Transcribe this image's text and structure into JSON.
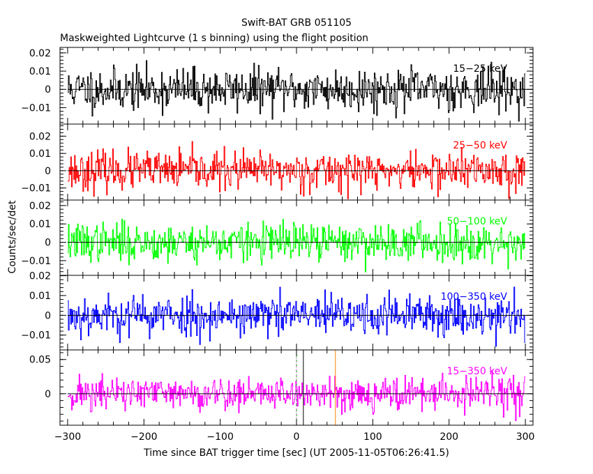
{
  "chart_data": {
    "type": "line",
    "title": "Swift-BAT GRB 051105",
    "subtitle": "Maskweighted Lightcurve (1 s binning) using the flight position",
    "xlabel": "Time since BAT trigger time [sec] (UT 2005-11-05T06:26:41.5)",
    "ylabel": "Counts/sec/det",
    "xlim": [
      -310,
      310
    ],
    "x_ticks": [
      -300,
      -200,
      -100,
      0,
      100,
      200,
      300
    ],
    "x_tick_labels": [
      "−300",
      "−200",
      "−100",
      "0",
      "100",
      "200",
      "300"
    ],
    "x_start": -300,
    "x_end": 300,
    "bin_seconds": 1,
    "markers": [
      {
        "x": 0,
        "color": "#00c000",
        "style": "dashed"
      },
      {
        "x": 0,
        "color": "#ff00ff",
        "style": "dotted"
      },
      {
        "x": 9,
        "color": "#000000",
        "style": "solid"
      },
      {
        "x": 51,
        "color": "#ff8000",
        "style": "solid"
      }
    ],
    "panels": [
      {
        "band": "15-25 keV",
        "label": "15−25 keV",
        "color": "#000000",
        "ylim": [
          -0.019,
          0.023
        ],
        "yticks": [
          -0.01,
          0,
          0.01,
          0.02
        ],
        "ytick_labels": [
          "−0.01",
          "0",
          "0.01",
          "0.02"
        ],
        "noise_sigma": 0.0058,
        "seed": 11
      },
      {
        "band": "25-50 keV",
        "label": "25−50 keV",
        "color": "#ff0000",
        "ylim": [
          -0.017,
          0.027
        ],
        "yticks": [
          -0.01,
          0,
          0.01,
          0.02
        ],
        "ytick_labels": [
          "−0.01",
          "0",
          "0.01",
          "0.02"
        ],
        "noise_sigma": 0.0055,
        "seed": 23
      },
      {
        "band": "50-100 keV",
        "label": "50−100 keV",
        "color": "#00ff00",
        "ylim": [
          -0.018,
          0.023
        ],
        "yticks": [
          -0.01,
          0,
          0.01,
          0.02
        ],
        "ytick_labels": [
          "−0.01",
          "0",
          "0.01",
          "0.02"
        ],
        "noise_sigma": 0.0052,
        "seed": 37
      },
      {
        "band": "100-350 keV",
        "label": "100−350 keV",
        "color": "#0000ff",
        "ylim": [
          -0.0175,
          0.0202
        ],
        "yticks": [
          -0.01,
          0,
          0.01,
          0.02
        ],
        "ytick_labels": [
          "−0.01",
          "0",
          "0.01",
          "0.02"
        ],
        "noise_sigma": 0.0052,
        "seed": 53
      },
      {
        "band": "15-350 keV",
        "label": "15−350 keV",
        "color": "#ff00ff",
        "ylim": [
          -0.046,
          0.064
        ],
        "yticks": [
          0,
          0.05
        ],
        "ytick_labels": [
          "0",
          "0.05"
        ],
        "noise_sigma": 0.0125,
        "seed": 71
      }
    ]
  }
}
